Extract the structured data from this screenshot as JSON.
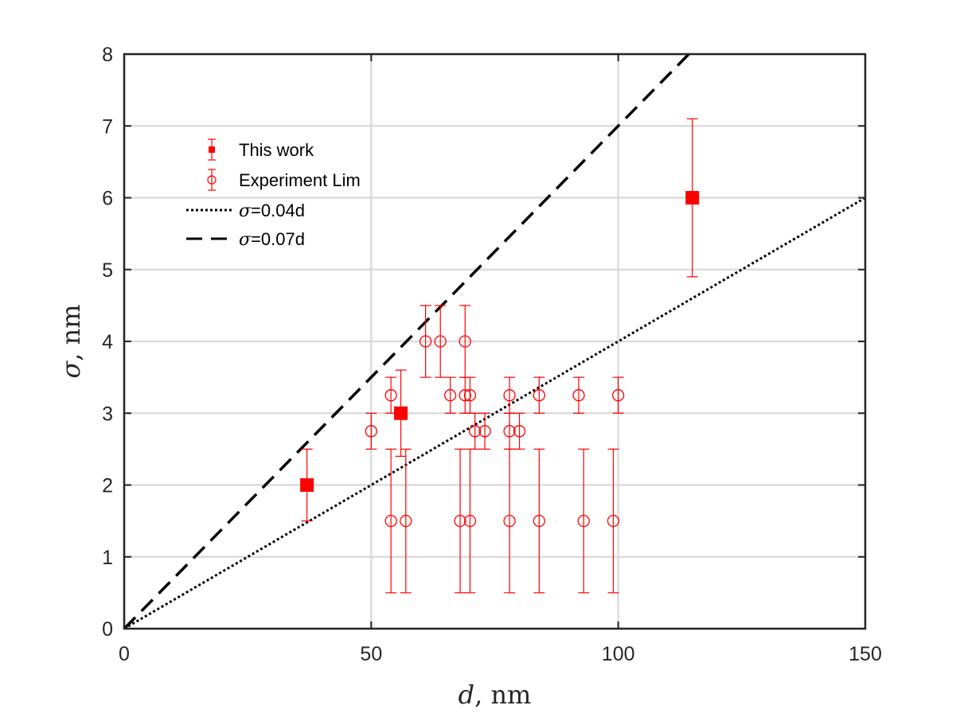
{
  "chart_data": {
    "type": "scatter",
    "xlabel": {
      "var": "d",
      "unit": ", nm"
    },
    "ylabel": {
      "var": "σ",
      "unit": ", nm"
    },
    "xlim": [
      0,
      150
    ],
    "ylim": [
      0,
      8
    ],
    "xticks": [
      0,
      50,
      100,
      150
    ],
    "yticks": [
      0,
      1,
      2,
      3,
      4,
      5,
      6,
      7,
      8
    ],
    "grid": true,
    "legend_placement": "upper-left",
    "series": [
      {
        "name": "This work",
        "kind": "errorbar",
        "marker": "filled-square",
        "color": "#ff0000",
        "points": [
          {
            "x": 37,
            "y": 2.0,
            "lo": 1.5,
            "hi": 2.5
          },
          {
            "x": 56,
            "y": 3.0,
            "lo": 2.4,
            "hi": 3.6
          },
          {
            "x": 115,
            "y": 6.0,
            "lo": 4.9,
            "hi": 7.1
          }
        ]
      },
      {
        "name": "Experiment Lim",
        "kind": "errorbar",
        "marker": "open-circle",
        "color": "#ff0000",
        "points": [
          {
            "x": 50,
            "y": 2.75,
            "lo": 2.5,
            "hi": 3.0
          },
          {
            "x": 54,
            "y": 3.25,
            "lo": 3.0,
            "hi": 3.5
          },
          {
            "x": 54,
            "y": 1.5,
            "lo": 0.5,
            "hi": 2.5
          },
          {
            "x": 57,
            "y": 1.5,
            "lo": 0.5,
            "hi": 2.5
          },
          {
            "x": 61,
            "y": 4.0,
            "lo": 3.5,
            "hi": 4.5
          },
          {
            "x": 64,
            "y": 4.0,
            "lo": 3.5,
            "hi": 4.5
          },
          {
            "x": 66,
            "y": 3.25,
            "lo": 3.0,
            "hi": 3.5
          },
          {
            "x": 68,
            "y": 1.5,
            "lo": 0.5,
            "hi": 2.5
          },
          {
            "x": 69,
            "y": 4.0,
            "lo": 3.5,
            "hi": 4.5
          },
          {
            "x": 69,
            "y": 3.25,
            "lo": 3.0,
            "hi": 3.5
          },
          {
            "x": 70,
            "y": 3.25,
            "lo": 3.0,
            "hi": 3.5
          },
          {
            "x": 70,
            "y": 1.5,
            "lo": 0.5,
            "hi": 2.5
          },
          {
            "x": 71,
            "y": 2.75,
            "lo": 2.5,
            "hi": 3.0
          },
          {
            "x": 73,
            "y": 2.75,
            "lo": 2.5,
            "hi": 3.0
          },
          {
            "x": 78,
            "y": 3.25,
            "lo": 3.0,
            "hi": 3.5
          },
          {
            "x": 78,
            "y": 2.75,
            "lo": 2.5,
            "hi": 3.0
          },
          {
            "x": 78,
            "y": 1.5,
            "lo": 0.5,
            "hi": 2.5
          },
          {
            "x": 80,
            "y": 2.75,
            "lo": 2.5,
            "hi": 3.0
          },
          {
            "x": 84,
            "y": 3.25,
            "lo": 3.0,
            "hi": 3.5
          },
          {
            "x": 84,
            "y": 1.5,
            "lo": 0.5,
            "hi": 2.5
          },
          {
            "x": 92,
            "y": 3.25,
            "lo": 3.0,
            "hi": 3.5
          },
          {
            "x": 93,
            "y": 1.5,
            "lo": 0.5,
            "hi": 2.5
          },
          {
            "x": 99,
            "y": 1.5,
            "lo": 0.5,
            "hi": 2.5
          },
          {
            "x": 100,
            "y": 3.25,
            "lo": 3.0,
            "hi": 3.5
          }
        ]
      },
      {
        "name": "σ=0.04d",
        "kind": "line",
        "style": "dotted",
        "color": "#000000",
        "x": [
          0,
          150
        ],
        "y": [
          0,
          6
        ]
      },
      {
        "name": "σ=0.07d",
        "kind": "line",
        "style": "dashed",
        "color": "#000000",
        "x": [
          0,
          114.2857
        ],
        "y": [
          0,
          8
        ]
      }
    ]
  }
}
